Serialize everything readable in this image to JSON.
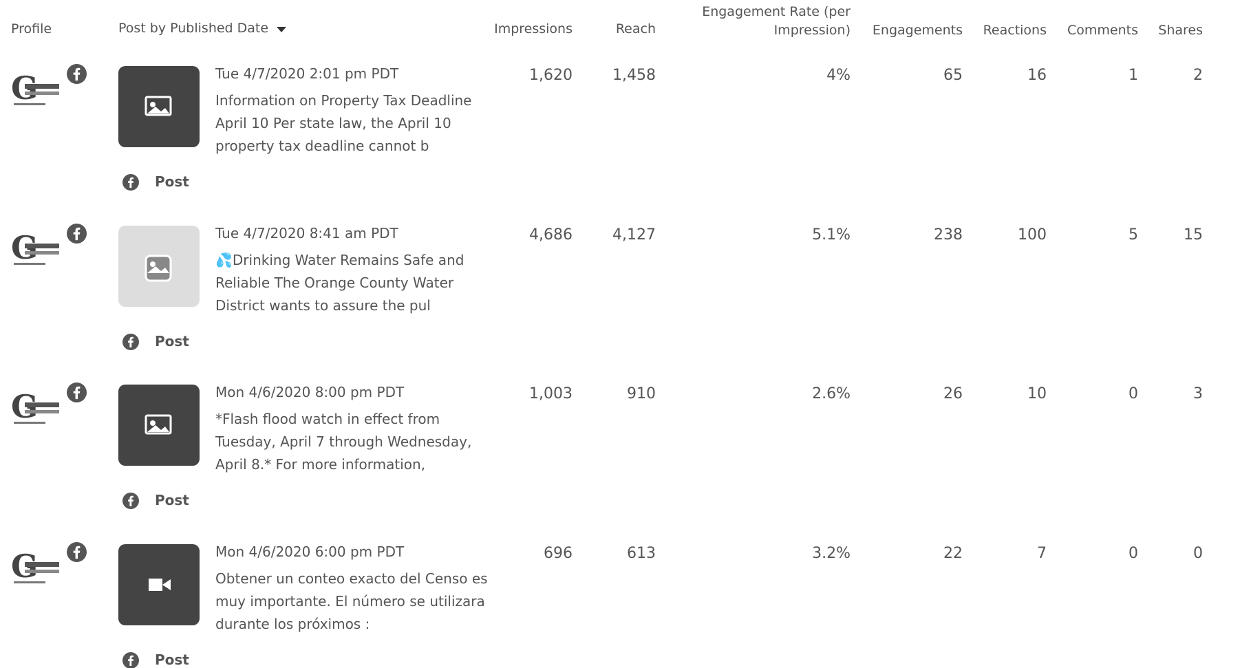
{
  "header": {
    "columns": [
      "Profile",
      "Post by Published Date",
      "Impressions",
      "Reach",
      "Engagement Rate (per Impression)",
      "Engagements",
      "Reactions",
      "Comments",
      "Shares"
    ]
  },
  "rows": [
    {
      "date": "Tue 4/7/2020 2:01 pm PDT",
      "text": "Information on Property Tax Deadline April 10 Per state law, the April 10 property tax deadline cannot b",
      "link": "Post",
      "cells": [
        "1,620",
        "1,458",
        "4%",
        "65",
        "16",
        "1",
        "2"
      ]
    },
    {
      "date": "Tue 4/7/2020 8:41 am PDT",
      "text": "💦Drinking Water Remains Safe and Reliable The Orange County Water District wants to assure the pul",
      "link": "Post",
      "cells": [
        "4,686",
        "4,127",
        "5.1%",
        "238",
        "100",
        "5",
        "15"
      ]
    },
    {
      "date": "Mon 4/6/2020 8:00 pm PDT",
      "text": "*Flash flood watch in effect from Tuesday, April 7 through Wednesday, April 8.* For more information,",
      "link": "Post",
      "cells": [
        "1,003",
        "910",
        "2.6%",
        "26",
        "10",
        "0",
        "3"
      ]
    },
    {
      "date": "Mon 4/6/2020 6:00 pm PDT",
      "text": "Obtener un conteo exacto del Censo es muy importante. El número se utilizara durante los próximos :",
      "link": "Post",
      "cells": [
        "696",
        "613",
        "3.2%",
        "22",
        "7",
        "0",
        "0"
      ]
    }
  ]
}
